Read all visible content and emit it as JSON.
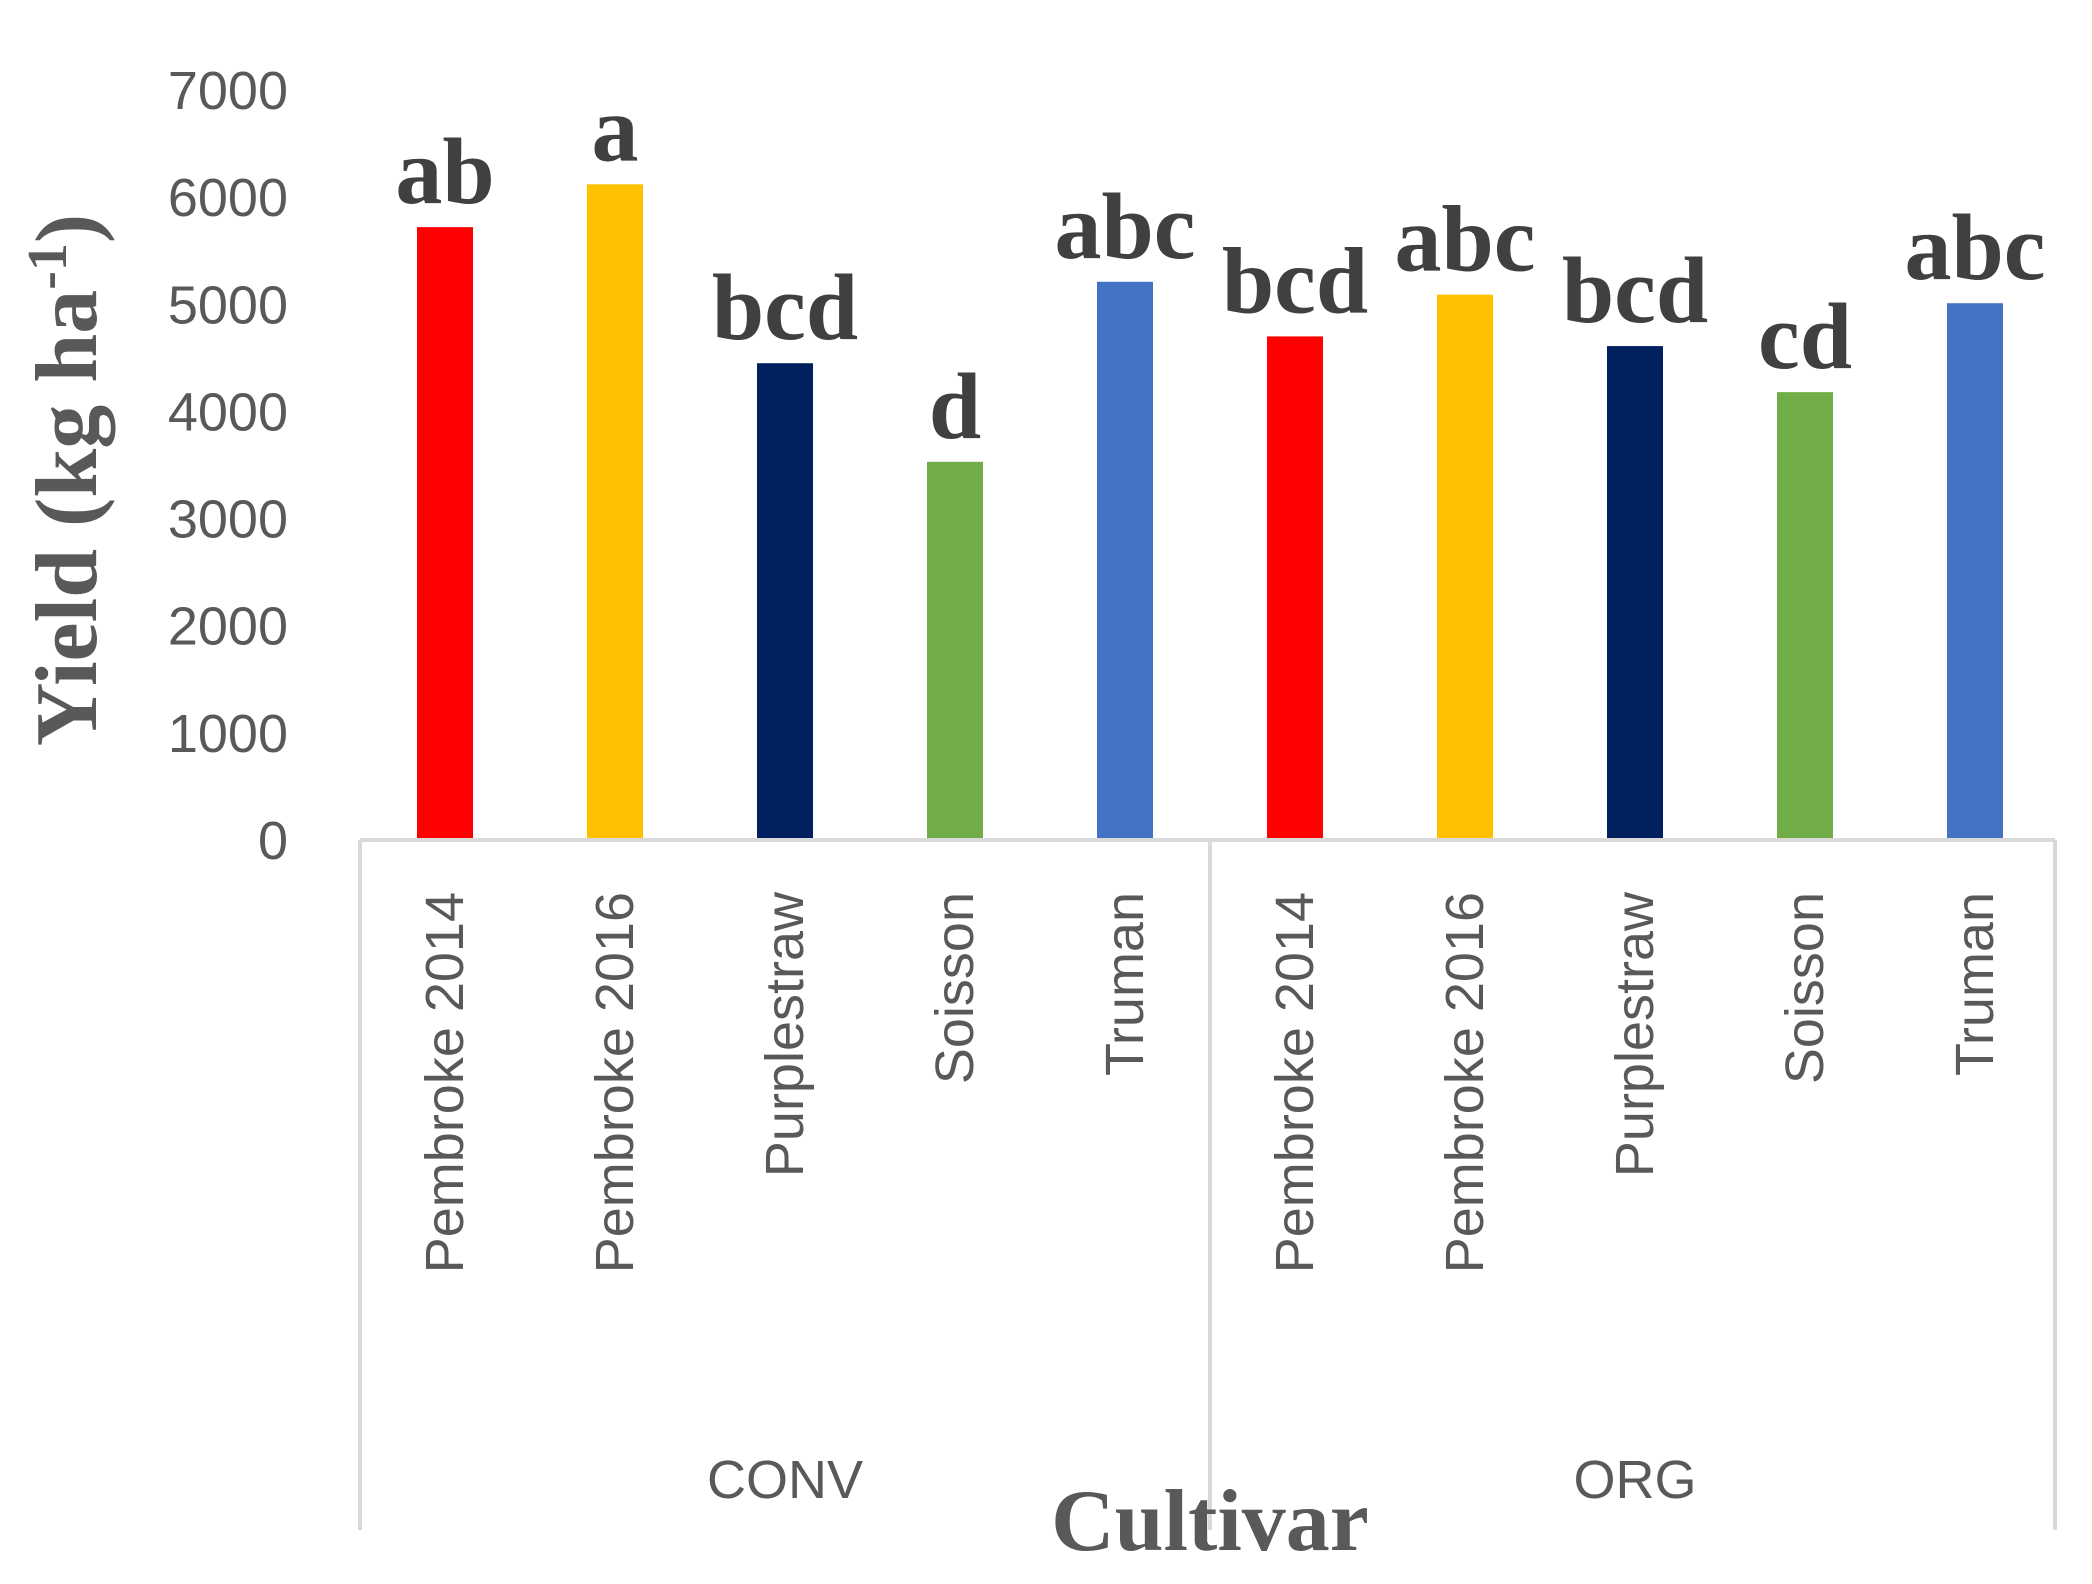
{
  "chart_data": {
    "type": "bar",
    "xlabel": "Cultivar",
    "ylabel_main": "Yield (kg ha",
    "ylabel_sup": "-1",
    "ylabel_end": ")",
    "ylim": [
      0,
      7000
    ],
    "yticks": [
      0,
      1000,
      2000,
      3000,
      4000,
      5000,
      6000,
      7000
    ],
    "grid": false,
    "groups": [
      {
        "name": "CONV",
        "bars": [
          {
            "category": "Pembroke 2014",
            "value": 5720,
            "letter": "ab",
            "color": "#FF0000"
          },
          {
            "category": "Pembroke 2016",
            "value": 6120,
            "letter": "a",
            "color": "#FFC000"
          },
          {
            "category": "Purplestraw",
            "value": 4450,
            "letter": "bcd",
            "color": "#002060"
          },
          {
            "category": "Soisson",
            "value": 3530,
            "letter": "d",
            "color": "#70AD47"
          },
          {
            "category": "Truman",
            "value": 5210,
            "letter": "abc",
            "color": "#4472C4"
          }
        ]
      },
      {
        "name": "ORG",
        "bars": [
          {
            "category": "Pembroke 2014",
            "value": 4700,
            "letter": "bcd",
            "color": "#FF0000"
          },
          {
            "category": "Pembroke 2016",
            "value": 5090,
            "letter": "abc",
            "color": "#FFC000"
          },
          {
            "category": "Purplestraw",
            "value": 4610,
            "letter": "bcd",
            "color": "#002060"
          },
          {
            "category": "Soisson",
            "value": 4180,
            "letter": "cd",
            "color": "#70AD47"
          },
          {
            "category": "Truman",
            "value": 5010,
            "letter": "abc",
            "color": "#4472C4"
          }
        ]
      }
    ]
  }
}
